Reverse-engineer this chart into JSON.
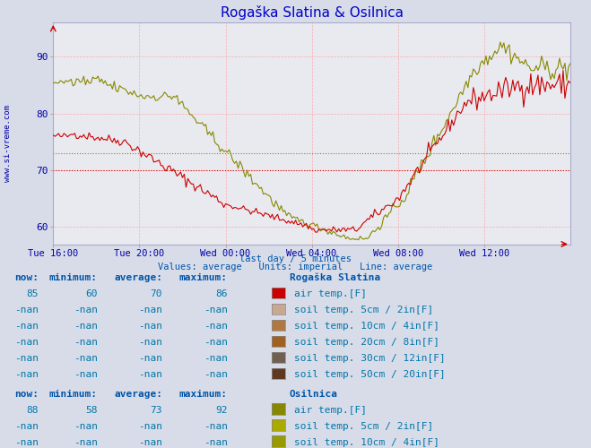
{
  "title": "Rogaška Slatina & Osilnica",
  "title_color": "#0000cc",
  "bg_color": "#d8dce8",
  "plot_bg_color": "#e8eaf0",
  "xlabel_color": "#0000aa",
  "ylabel_ticks": [
    60,
    70,
    80,
    90
  ],
  "ylim": [
    57,
    96
  ],
  "xlim": [
    0,
    288
  ],
  "x_tick_labels": [
    "Tue 16:00",
    "Tue 20:00",
    "Wed 00:00",
    "Wed 04:00",
    "Wed 08:00",
    "Wed 12:00"
  ],
  "x_tick_positions": [
    0,
    48,
    96,
    144,
    192,
    240
  ],
  "avg_line_rogaska": 70.0,
  "avg_line_osilnica": 73.0,
  "avg_line_rogaska_color": "#cc0000",
  "avg_line_osilnica_color": "#888800",
  "line_rogaska_color": "#cc0000",
  "line_osilnica_color": "#888800",
  "watermark_color": "#0000aa",
  "footer_text1": "last day / 5 minutes",
  "footer_text2": "Values: average   Units: imperial   Line: average",
  "table_header_color": "#0055aa",
  "table_value_color": "#0077aa",
  "station1_name": "Rogaška Slatina",
  "station1_now": "85",
  "station1_min": "60",
  "station1_avg": "70",
  "station1_max": "86",
  "station1_air_color": "#cc0000",
  "station1_soil_colors": [
    "#c8a890",
    "#b07840",
    "#a06020",
    "#706050",
    "#603820"
  ],
  "station2_name": "Osilnica",
  "station2_now": "88",
  "station2_min": "58",
  "station2_avg": "73",
  "station2_max": "92",
  "station2_air_color": "#888800",
  "station2_soil_colors": [
    "#aaaa00",
    "#999900",
    "#888800",
    "#777700",
    "#666600"
  ],
  "label_air": "air temp.[F]",
  "label_soils": [
    "soil temp. 5cm / 2in[F]",
    "soil temp. 10cm / 4in[F]",
    "soil temp. 20cm / 8in[F]",
    "soil temp. 30cm / 12in[F]",
    "soil temp. 50cm / 20in[F]"
  ],
  "nan_val": "-nan"
}
